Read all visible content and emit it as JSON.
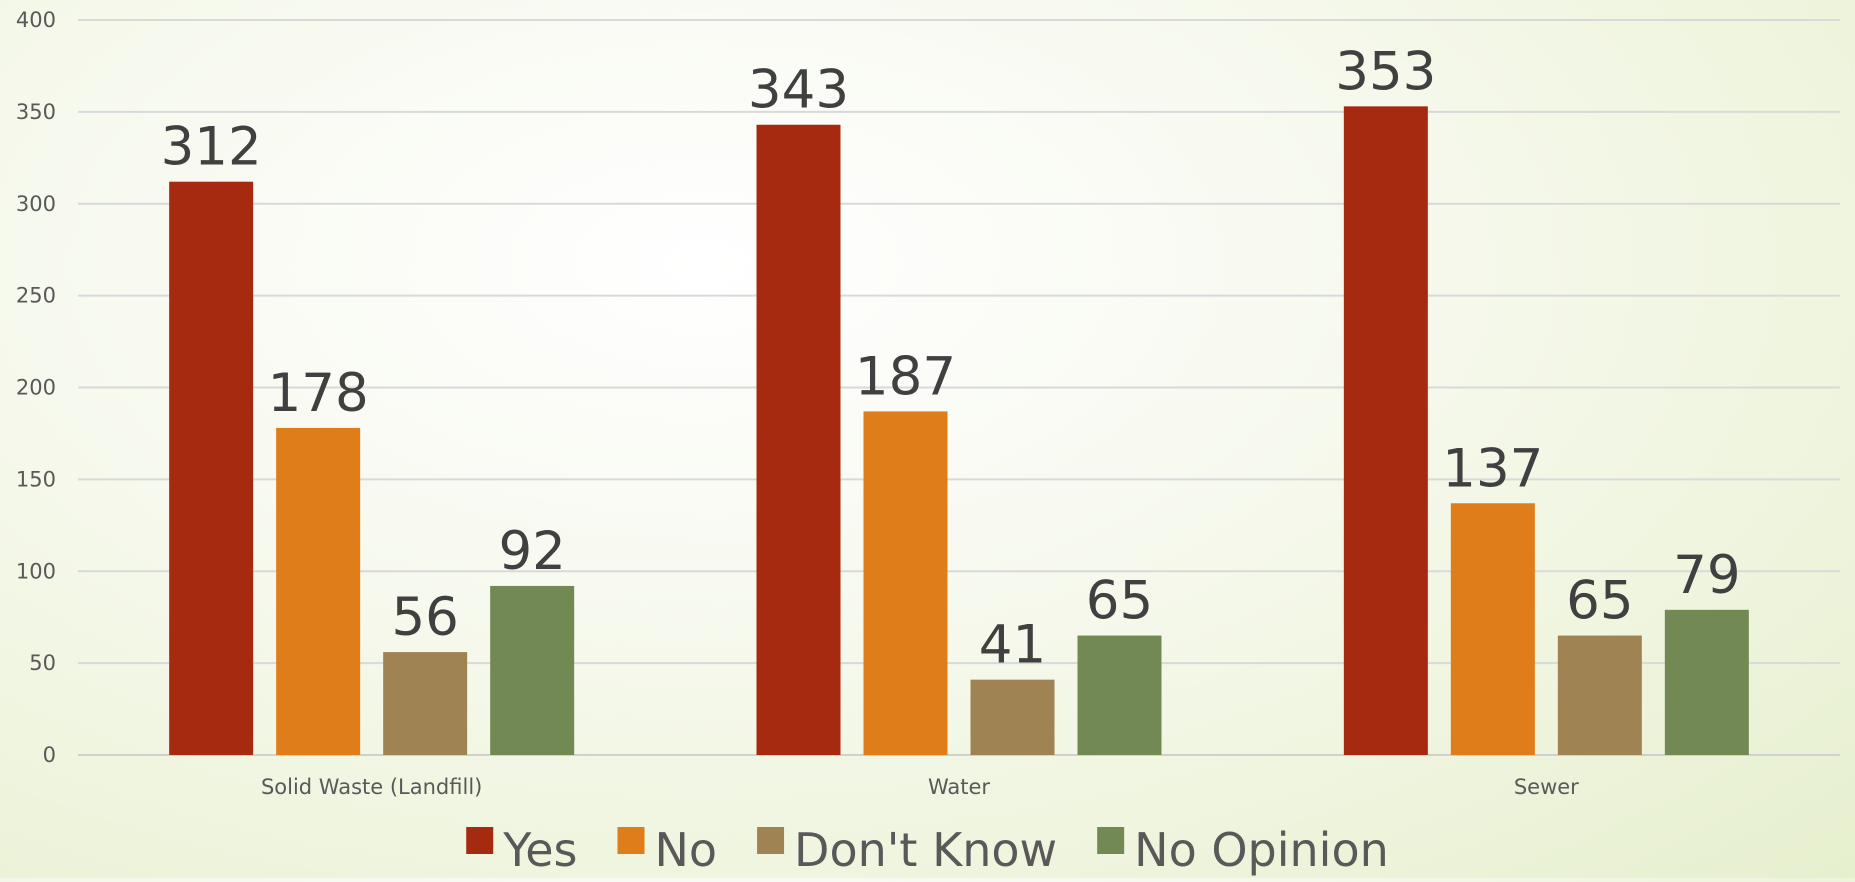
{
  "chart_data": {
    "type": "bar",
    "title": "",
    "xlabel": "",
    "ylabel": "",
    "categories": [
      "Solid Waste (Landfill)",
      "Water",
      "Sewer"
    ],
    "series": [
      {
        "name": "Yes",
        "color": "#a52a10",
        "values": [
          312,
          343,
          353
        ]
      },
      {
        "name": "No",
        "color": "#de7d19",
        "values": [
          178,
          187,
          137
        ]
      },
      {
        "name": "Don't Know",
        "color": "#a08352",
        "values": [
          56,
          41,
          65
        ]
      },
      {
        "name": "No Opinion",
        "color": "#728953",
        "values": [
          92,
          65,
          79
        ]
      }
    ],
    "ylim": [
      0,
      400
    ],
    "yticks": [
      0,
      50,
      100,
      150,
      200,
      250,
      300,
      350,
      400
    ],
    "grid": true,
    "data_labels": true,
    "legend_position": "bottom"
  }
}
